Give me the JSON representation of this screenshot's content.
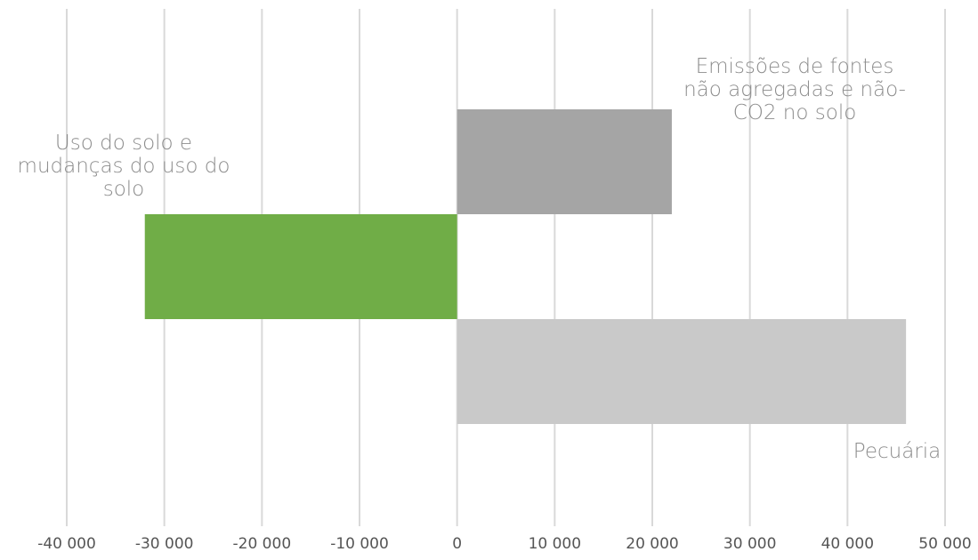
{
  "chart_data": {
    "type": "bar",
    "orientation": "horizontal",
    "title": "",
    "xlabel": "",
    "ylabel": "",
    "xlim": [
      -40000,
      50000
    ],
    "grid": true,
    "legend": "none",
    "tick_labels": [
      "-40 000",
      "-30 000",
      "-20 000",
      "-10 000",
      "0",
      "10 000",
      "20 000",
      "30 000",
      "40 000",
      "50 000"
    ],
    "bars": [
      {
        "category": "Emissões de fontes não agregadas e não-CO2 no solo",
        "label_lines": [
          "Emissões de fontes",
          "não agregadas e não-",
          "CO2 no solo"
        ],
        "start": 0,
        "end": 22000,
        "color": "#a5a5a5"
      },
      {
        "category": "Uso do solo e mudanças do uso do solo",
        "label_lines": [
          "Uso do solo e",
          "mudanças do uso do",
          "solo"
        ],
        "start": -32000,
        "end": 0,
        "color": "#70ad47"
      },
      {
        "category": "Pecuária",
        "label_lines": [
          "Pecuária"
        ],
        "start": 0,
        "end": 46000,
        "color": "#c9c9c9"
      }
    ],
    "gridline_color": "#d9d9d9",
    "text_color": "#8c8c8c"
  }
}
